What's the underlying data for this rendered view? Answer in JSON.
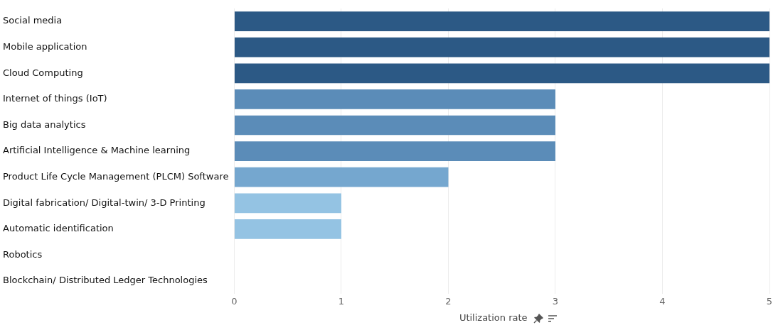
{
  "chart_data": {
    "type": "bar",
    "orientation": "horizontal",
    "xlabel": "Utilization rate",
    "categories": [
      "Social media",
      "Mobile application",
      "Cloud Computing",
      "Internet of things (IoT)",
      "Big data analytics",
      "Artificial Intelligence & Machine learning",
      "Product Life Cycle Management (PLCM) Software",
      "Digital fabrication/ Digital-twin/ 3-D Printing",
      "Automatic identification",
      "Robotics",
      "Blockchain/ Distributed Ledger Technologies"
    ],
    "values": [
      5,
      5,
      5,
      3,
      3,
      3,
      2,
      1,
      1,
      0,
      0
    ],
    "colors": [
      "#2c5985",
      "#2c5985",
      "#2c5985",
      "#5b8cb8",
      "#5b8cb8",
      "#5b8cb8",
      "#75a7cf",
      "#94c3e3",
      "#94c3e3",
      "#94c3e3",
      "#94c3e3"
    ],
    "xlim": [
      0,
      5
    ],
    "xticks": [
      0,
      1,
      2,
      3,
      4,
      5
    ],
    "grid": "x",
    "legend": false
  }
}
